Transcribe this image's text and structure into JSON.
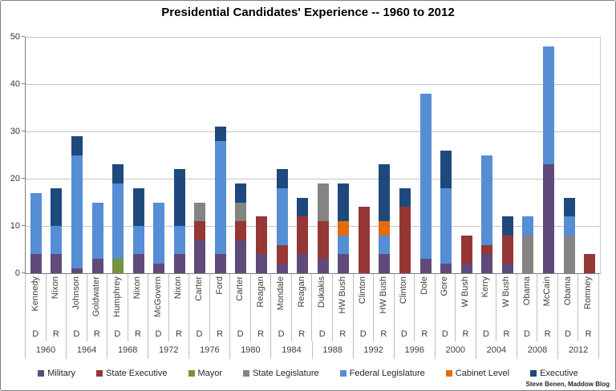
{
  "title": "Presidential Candidates' Experience -- 1960 to 2012",
  "attribution": "Steve Benen, Maddow Blog",
  "chart_data": {
    "type": "bar",
    "stacked": true,
    "title": "Presidential Candidates' Experience -- 1960 to 2012",
    "ylabel": "",
    "xlabel": "",
    "ylim": [
      0,
      50
    ],
    "yticks": [
      0,
      10,
      20,
      30,
      40,
      50
    ],
    "grid": true,
    "legend_position": "bottom",
    "series_order": [
      "Military",
      "State Executive",
      "Mayor",
      "State Legislature",
      "Federal Legislature",
      "Cabinet Level",
      "Executive"
    ],
    "colors": {
      "Military": "#604A7B",
      "State Executive": "#953735",
      "Mayor": "#77933C",
      "State Legislature": "#848484",
      "Federal Legislature": "#558ED5",
      "Cabinet Level": "#E36C0A",
      "Executive": "#1F497D"
    },
    "groups": [
      {
        "year": "1960",
        "bars": [
          {
            "name": "Kennedy",
            "party": "D",
            "total": 17,
            "segments": [
              {
                "category": "Military",
                "value": 4
              },
              {
                "category": "Federal Legislature",
                "value": 13
              }
            ]
          },
          {
            "name": "Nixon",
            "party": "R",
            "total": 18,
            "segments": [
              {
                "category": "Military",
                "value": 4
              },
              {
                "category": "Federal Legislature",
                "value": 6
              },
              {
                "category": "Executive",
                "value": 8
              }
            ]
          }
        ]
      },
      {
        "year": "1964",
        "bars": [
          {
            "name": "Johnson",
            "party": "D",
            "total": 29,
            "segments": [
              {
                "category": "Military",
                "value": 1
              },
              {
                "category": "Federal Legislature",
                "value": 24
              },
              {
                "category": "Executive",
                "value": 4
              }
            ]
          },
          {
            "name": "Goldwater",
            "party": "R",
            "total": 15,
            "segments": [
              {
                "category": "Military",
                "value": 3
              },
              {
                "category": "Federal Legislature",
                "value": 12
              }
            ]
          }
        ]
      },
      {
        "year": "1968",
        "bars": [
          {
            "name": "Humphrey",
            "party": "D",
            "total": 23,
            "segments": [
              {
                "category": "Mayor",
                "value": 3
              },
              {
                "category": "Federal Legislature",
                "value": 16
              },
              {
                "category": "Executive",
                "value": 4
              }
            ]
          },
          {
            "name": "Nixon",
            "party": "R",
            "total": 18,
            "segments": [
              {
                "category": "Military",
                "value": 4
              },
              {
                "category": "Federal Legislature",
                "value": 6
              },
              {
                "category": "Executive",
                "value": 8
              }
            ]
          }
        ]
      },
      {
        "year": "1972",
        "bars": [
          {
            "name": "McGovern",
            "party": "D",
            "total": 15,
            "segments": [
              {
                "category": "Military",
                "value": 2
              },
              {
                "category": "Federal Legislature",
                "value": 13
              }
            ]
          },
          {
            "name": "Nixon",
            "party": "R",
            "total": 22,
            "segments": [
              {
                "category": "Military",
                "value": 4
              },
              {
                "category": "Federal Legislature",
                "value": 6
              },
              {
                "category": "Executive",
                "value": 12
              }
            ]
          }
        ]
      },
      {
        "year": "1976",
        "bars": [
          {
            "name": "Carter",
            "party": "D",
            "total": 15,
            "segments": [
              {
                "category": "Military",
                "value": 7
              },
              {
                "category": "State Executive",
                "value": 4
              },
              {
                "category": "State Legislature",
                "value": 4
              }
            ]
          },
          {
            "name": "Ford",
            "party": "R",
            "total": 31,
            "segments": [
              {
                "category": "Military",
                "value": 4
              },
              {
                "category": "Federal Legislature",
                "value": 24
              },
              {
                "category": "Executive",
                "value": 3
              }
            ]
          }
        ]
      },
      {
        "year": "1980",
        "bars": [
          {
            "name": "Carter",
            "party": "D",
            "total": 19,
            "segments": [
              {
                "category": "Military",
                "value": 7
              },
              {
                "category": "State Executive",
                "value": 4
              },
              {
                "category": "State Legislature",
                "value": 4
              },
              {
                "category": "Executive",
                "value": 4
              }
            ]
          },
          {
            "name": "Reagan",
            "party": "R",
            "total": 12,
            "segments": [
              {
                "category": "Military",
                "value": 4
              },
              {
                "category": "State Executive",
                "value": 8
              }
            ]
          }
        ]
      },
      {
        "year": "1984",
        "bars": [
          {
            "name": "Mondale",
            "party": "D",
            "total": 22,
            "segments": [
              {
                "category": "Military",
                "value": 2
              },
              {
                "category": "State Executive",
                "value": 4
              },
              {
                "category": "Federal Legislature",
                "value": 12
              },
              {
                "category": "Executive",
                "value": 4
              }
            ]
          },
          {
            "name": "Reagan",
            "party": "R",
            "total": 16,
            "segments": [
              {
                "category": "Military",
                "value": 4
              },
              {
                "category": "State Executive",
                "value": 8
              },
              {
                "category": "Executive",
                "value": 4
              }
            ]
          }
        ]
      },
      {
        "year": "1988",
        "bars": [
          {
            "name": "Dukakis",
            "party": "D",
            "total": 19,
            "segments": [
              {
                "category": "Military",
                "value": 3
              },
              {
                "category": "State Executive",
                "value": 8
              },
              {
                "category": "State Legislature",
                "value": 8
              }
            ]
          },
          {
            "name": "HW Bush",
            "party": "R",
            "total": 19,
            "segments": [
              {
                "category": "Military",
                "value": 4
              },
              {
                "category": "Federal Legislature",
                "value": 4
              },
              {
                "category": "Cabinet Level",
                "value": 3
              },
              {
                "category": "Executive",
                "value": 8
              }
            ]
          }
        ]
      },
      {
        "year": "1992",
        "bars": [
          {
            "name": "Clinton",
            "party": "D",
            "total": 14,
            "segments": [
              {
                "category": "State Executive",
                "value": 14
              }
            ]
          },
          {
            "name": "HW Bush",
            "party": "R",
            "total": 23,
            "segments": [
              {
                "category": "Military",
                "value": 4
              },
              {
                "category": "Federal Legislature",
                "value": 4
              },
              {
                "category": "Cabinet Level",
                "value": 3
              },
              {
                "category": "Executive",
                "value": 12
              }
            ]
          }
        ]
      },
      {
        "year": "1996",
        "bars": [
          {
            "name": "Clinton",
            "party": "D",
            "total": 18,
            "segments": [
              {
                "category": "State Executive",
                "value": 14
              },
              {
                "category": "Executive",
                "value": 4
              }
            ]
          },
          {
            "name": "Dole",
            "party": "R",
            "total": 38,
            "segments": [
              {
                "category": "Military",
                "value": 3
              },
              {
                "category": "Federal Legislature",
                "value": 35
              }
            ]
          }
        ]
      },
      {
        "year": "2000",
        "bars": [
          {
            "name": "Gore",
            "party": "D",
            "total": 26,
            "segments": [
              {
                "category": "Military",
                "value": 2
              },
              {
                "category": "Federal Legislature",
                "value": 16
              },
              {
                "category": "Executive",
                "value": 8
              }
            ]
          },
          {
            "name": "W Bush",
            "party": "R",
            "total": 8,
            "segments": [
              {
                "category": "Military",
                "value": 2
              },
              {
                "category": "State Executive",
                "value": 6
              }
            ]
          }
        ]
      },
      {
        "year": "2004",
        "bars": [
          {
            "name": "Kerry",
            "party": "D",
            "total": 25,
            "segments": [
              {
                "category": "Military",
                "value": 4
              },
              {
                "category": "State Executive",
                "value": 2
              },
              {
                "category": "Federal Legislature",
                "value": 19
              }
            ]
          },
          {
            "name": "W Bush",
            "party": "R",
            "total": 12,
            "segments": [
              {
                "category": "Military",
                "value": 2
              },
              {
                "category": "State Executive",
                "value": 6
              },
              {
                "category": "Executive",
                "value": 4
              }
            ]
          }
        ]
      },
      {
        "year": "2008",
        "bars": [
          {
            "name": "Obama",
            "party": "D",
            "total": 12,
            "segments": [
              {
                "category": "State Legislature",
                "value": 8
              },
              {
                "category": "Federal Legislature",
                "value": 4
              }
            ]
          },
          {
            "name": "McCain",
            "party": "R",
            "total": 48,
            "segments": [
              {
                "category": "Military",
                "value": 23
              },
              {
                "category": "Federal Legislature",
                "value": 25
              }
            ]
          }
        ]
      },
      {
        "year": "2012",
        "bars": [
          {
            "name": "Obama",
            "party": "D",
            "total": 16,
            "segments": [
              {
                "category": "State Legislature",
                "value": 8
              },
              {
                "category": "Federal Legislature",
                "value": 4
              },
              {
                "category": "Executive",
                "value": 4
              }
            ]
          },
          {
            "name": "Romney",
            "party": "R",
            "total": 4,
            "segments": [
              {
                "category": "State Executive",
                "value": 4
              }
            ]
          }
        ]
      }
    ]
  }
}
